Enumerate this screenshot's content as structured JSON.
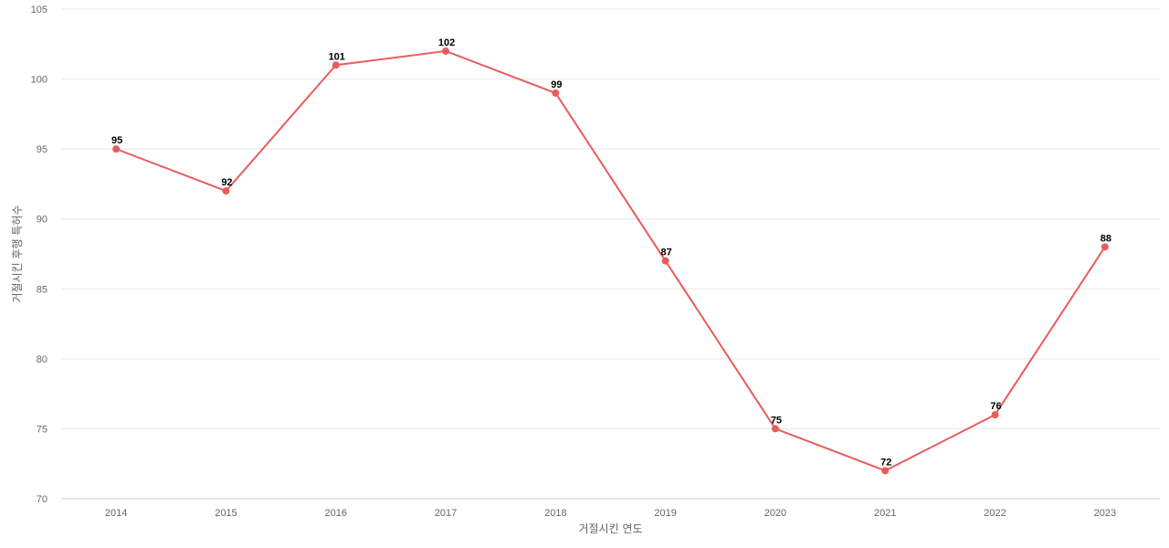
{
  "chart_data": {
    "type": "line",
    "title": "",
    "xlabel": "거절시킨 연도",
    "ylabel": "거절시킨 후행 특허수",
    "categories": [
      "2014",
      "2015",
      "2016",
      "2017",
      "2018",
      "2019",
      "2020",
      "2021",
      "2022",
      "2023"
    ],
    "series": [
      {
        "values": [
          95,
          92,
          101,
          102,
          99,
          87,
          75,
          72,
          76,
          88
        ],
        "color": "#e85c5c"
      }
    ],
    "ylim": [
      70,
      105
    ],
    "yticks": [
      70,
      75,
      80,
      85,
      90,
      95,
      100,
      105
    ],
    "grid": true,
    "legend": "none",
    "data_labels": true
  }
}
